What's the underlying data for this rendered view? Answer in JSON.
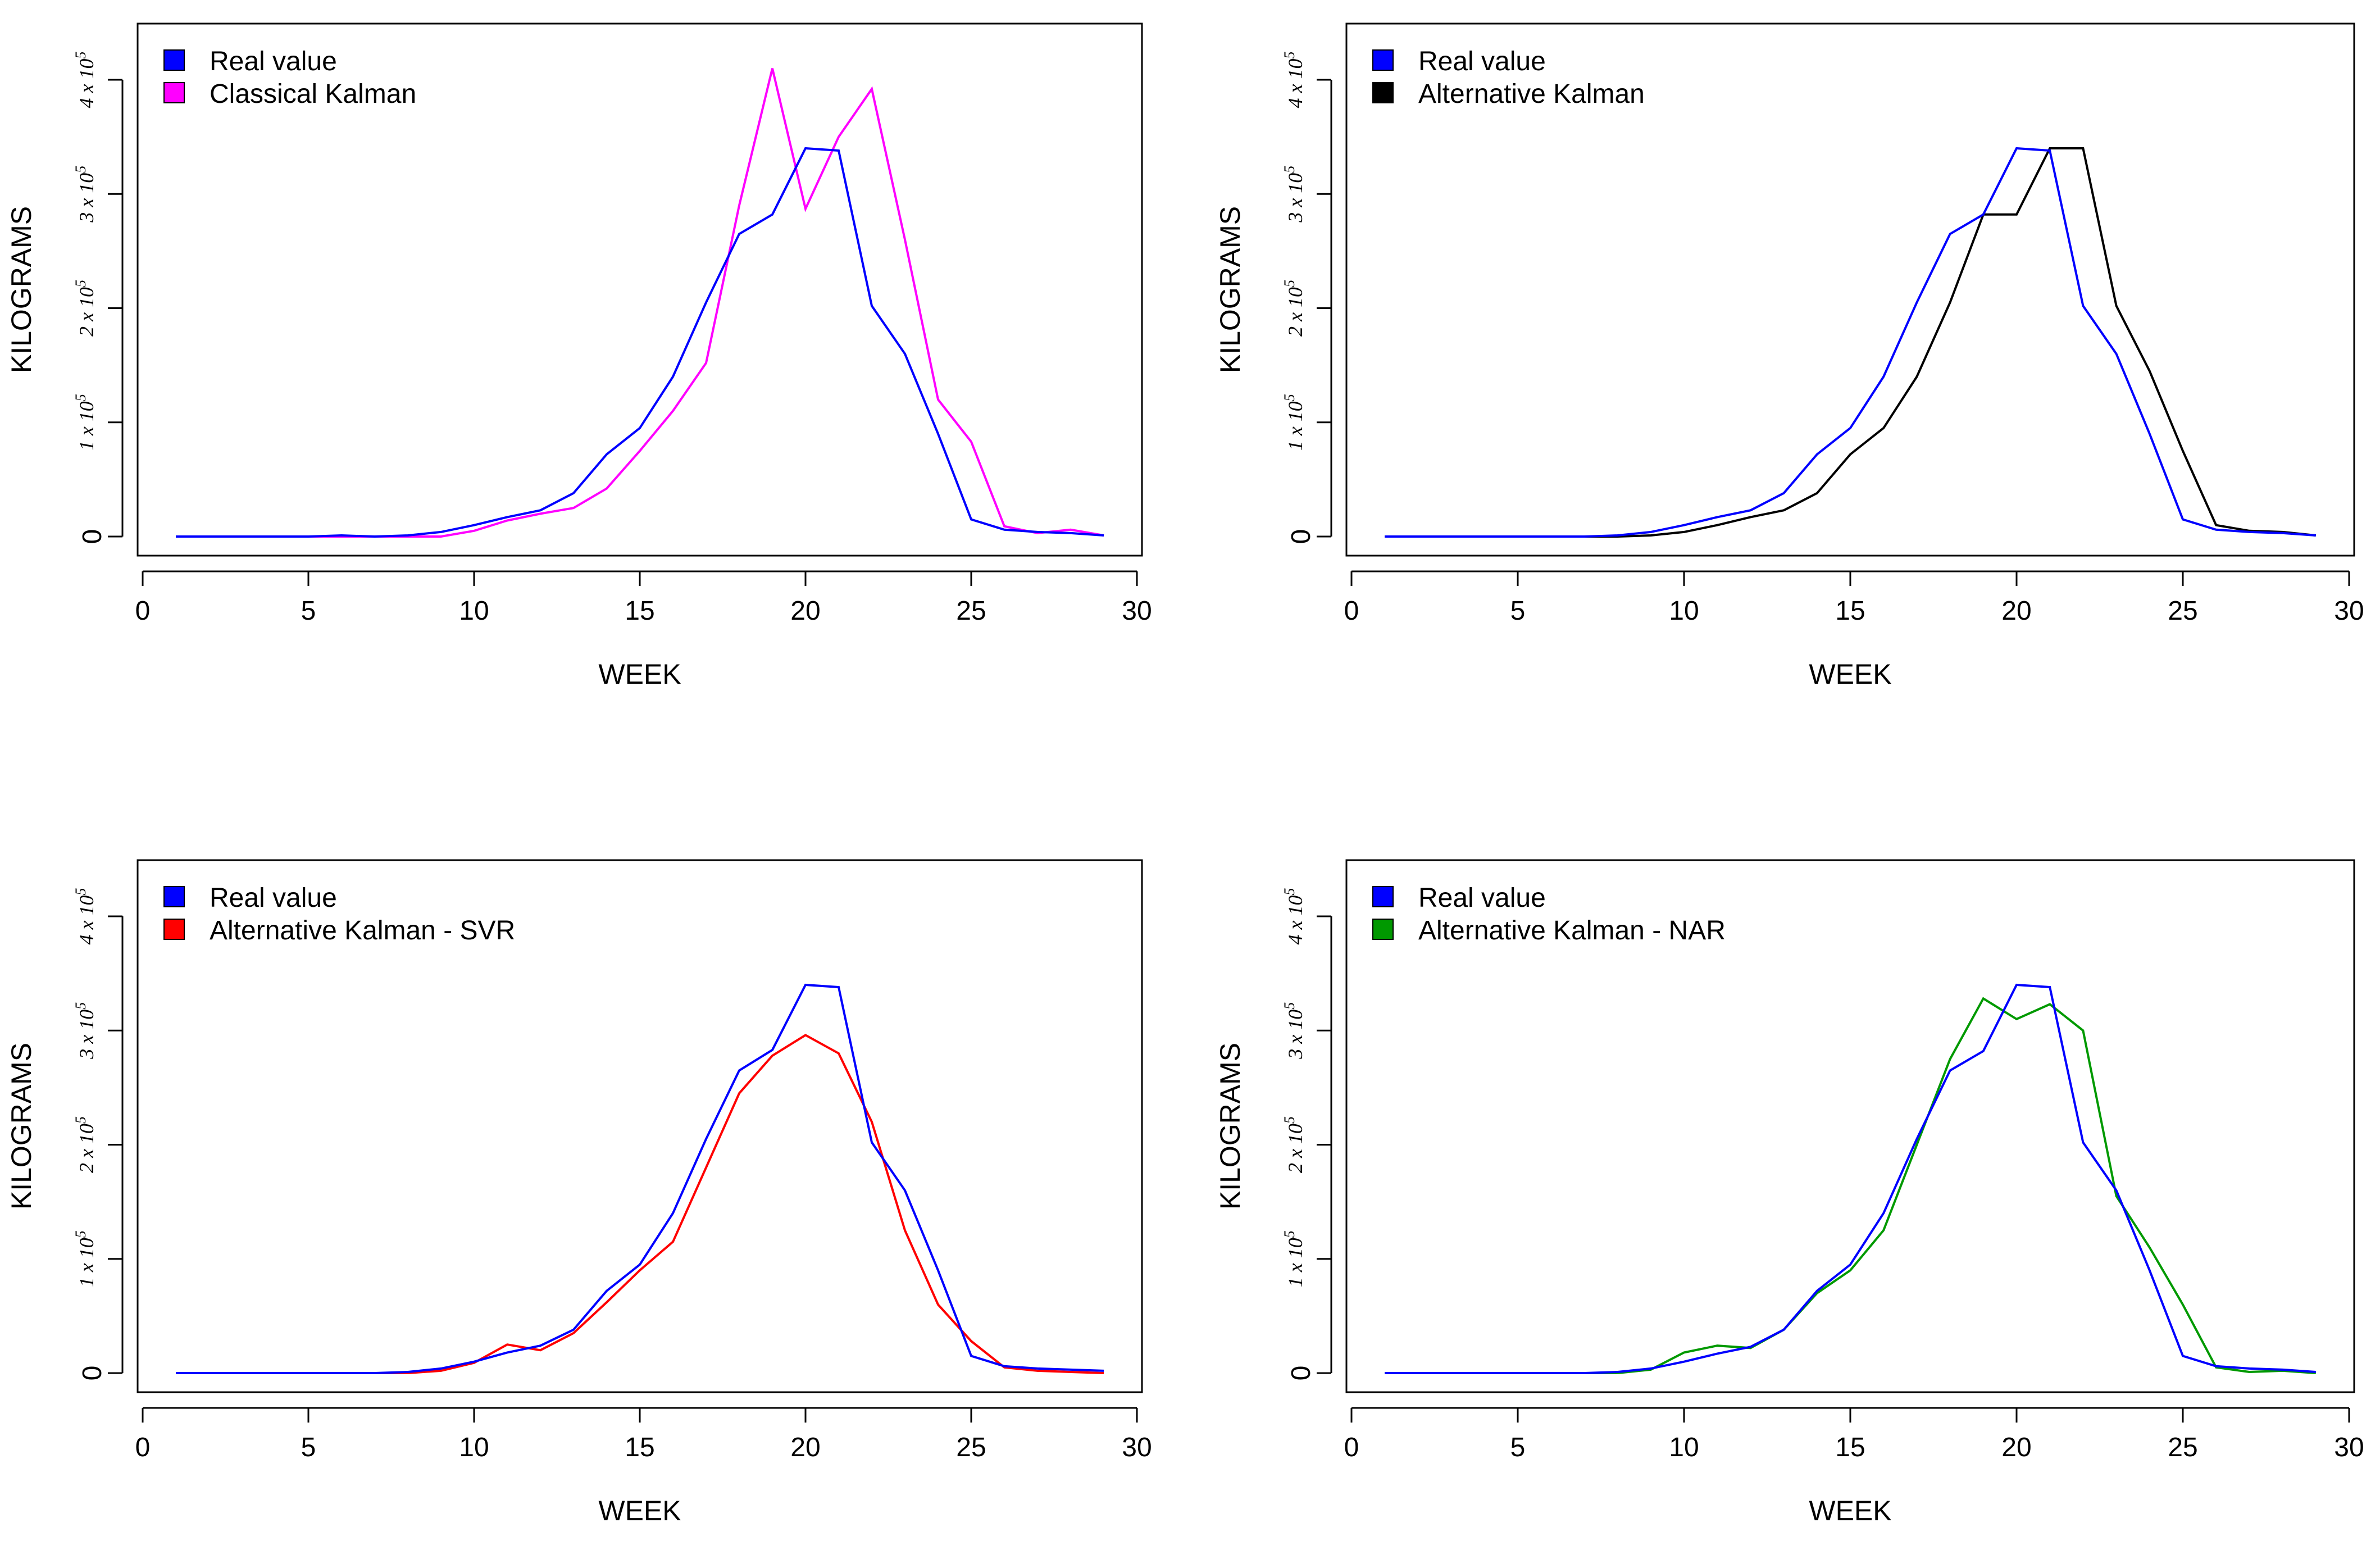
{
  "chart_data": [
    {
      "type": "line",
      "title": "",
      "xlabel": "WEEK",
      "ylabel": "KILOGRAMS",
      "xlim": [
        0,
        30
      ],
      "ylim": [
        0,
        400000
      ],
      "xticks": [
        0,
        5,
        10,
        15,
        20,
        25,
        30
      ],
      "yticks": [
        {
          "value": 0,
          "text": "0",
          "sup": ""
        },
        {
          "value": 100000,
          "text": "1 x 10",
          "sup": "5"
        },
        {
          "value": 200000,
          "text": "2 x 10",
          "sup": "5"
        },
        {
          "value": 300000,
          "text": "3 x 10",
          "sup": "5"
        },
        {
          "value": 400000,
          "text": "4 x 10",
          "sup": "5"
        }
      ],
      "grid": false,
      "legend_position": "top-left",
      "x": [
        1,
        2,
        3,
        4,
        5,
        6,
        7,
        8,
        9,
        10,
        11,
        12,
        13,
        14,
        15,
        16,
        17,
        18,
        19,
        20,
        21,
        22,
        23,
        24,
        25,
        26,
        27,
        28,
        29
      ],
      "series": [
        {
          "name": "Classical Kalman",
          "color": "#ff00ff",
          "values": [
            0,
            0,
            0,
            0,
            0,
            0,
            0,
            0,
            0,
            5000,
            14000,
            20000,
            25000,
            42000,
            75000,
            110000,
            152000,
            290000,
            410000,
            287000,
            350000,
            392000,
            260000,
            120000,
            83000,
            9000,
            3000,
            6000,
            1000
          ]
        },
        {
          "name": "Real value",
          "color": "#0000ff",
          "values": [
            0,
            0,
            0,
            0,
            0,
            1000,
            0,
            1000,
            4000,
            10000,
            17000,
            23000,
            38000,
            72000,
            95000,
            140000,
            205000,
            265000,
            282000,
            340000,
            338000,
            202000,
            160000,
            90000,
            15000,
            6000,
            4000,
            3000,
            1000
          ]
        }
      ],
      "legend": [
        {
          "label": "Real value",
          "color": "#0000ff"
        },
        {
          "label": "Classical Kalman",
          "color": "#ff00ff"
        }
      ]
    },
    {
      "type": "line",
      "title": "",
      "xlabel": "WEEK",
      "ylabel": "KILOGRAMS",
      "xlim": [
        0,
        30
      ],
      "ylim": [
        0,
        400000
      ],
      "xticks": [
        0,
        5,
        10,
        15,
        20,
        25,
        30
      ],
      "yticks": [
        {
          "value": 0,
          "text": "0",
          "sup": ""
        },
        {
          "value": 100000,
          "text": "1 x 10",
          "sup": "5"
        },
        {
          "value": 200000,
          "text": "2 x 10",
          "sup": "5"
        },
        {
          "value": 300000,
          "text": "3 x 10",
          "sup": "5"
        },
        {
          "value": 400000,
          "text": "4 x 10",
          "sup": "5"
        }
      ],
      "grid": false,
      "legend_position": "top-left",
      "x": [
        1,
        2,
        3,
        4,
        5,
        6,
        7,
        8,
        9,
        10,
        11,
        12,
        13,
        14,
        15,
        16,
        17,
        18,
        19,
        20,
        21,
        22,
        23,
        24,
        25,
        26,
        27,
        28,
        29
      ],
      "series": [
        {
          "name": "Alternative Kalman",
          "color": "#000000",
          "values": [
            0,
            0,
            0,
            0,
            0,
            0,
            0,
            0,
            1000,
            4000,
            10000,
            17000,
            23000,
            38000,
            72000,
            95000,
            140000,
            205000,
            282000,
            282000,
            340000,
            340000,
            202000,
            145000,
            75000,
            10000,
            5000,
            4000,
            1000
          ]
        },
        {
          "name": "Real value",
          "color": "#0000ff",
          "values": [
            0,
            0,
            0,
            0,
            0,
            0,
            0,
            1000,
            4000,
            10000,
            17000,
            23000,
            38000,
            72000,
            95000,
            140000,
            205000,
            265000,
            282000,
            340000,
            338000,
            202000,
            160000,
            90000,
            15000,
            6000,
            4000,
            3000,
            1000
          ]
        }
      ],
      "legend": [
        {
          "label": "Real value",
          "color": "#0000ff"
        },
        {
          "label": "Alternative Kalman",
          "color": "#000000"
        }
      ]
    },
    {
      "type": "line",
      "title": "",
      "xlabel": "WEEK",
      "ylabel": "KILOGRAMS",
      "xlim": [
        0,
        30
      ],
      "ylim": [
        0,
        400000
      ],
      "xticks": [
        0,
        5,
        10,
        15,
        20,
        25,
        30
      ],
      "yticks": [
        {
          "value": 0,
          "text": "0",
          "sup": ""
        },
        {
          "value": 100000,
          "text": "1 x 10",
          "sup": "5"
        },
        {
          "value": 200000,
          "text": "2 x 10",
          "sup": "5"
        },
        {
          "value": 300000,
          "text": "3 x 10",
          "sup": "5"
        },
        {
          "value": 400000,
          "text": "4 x 10",
          "sup": "5"
        }
      ],
      "grid": false,
      "legend_position": "top-left",
      "x": [
        1,
        2,
        3,
        4,
        5,
        6,
        7,
        8,
        9,
        10,
        11,
        12,
        13,
        14,
        15,
        16,
        17,
        18,
        19,
        20,
        21,
        22,
        23,
        24,
        25,
        26,
        27,
        28,
        29
      ],
      "series": [
        {
          "name": "Alternative Kalman - SVR",
          "color": "#ff0000",
          "values": [
            0,
            0,
            0,
            0,
            0,
            0,
            0,
            0,
            2000,
            9000,
            25000,
            20000,
            35000,
            62000,
            90000,
            115000,
            180000,
            245000,
            278000,
            296000,
            280000,
            220000,
            125000,
            60000,
            28000,
            5000,
            2000,
            1000,
            0
          ]
        },
        {
          "name": "Real value",
          "color": "#0000ff",
          "values": [
            0,
            0,
            0,
            0,
            0,
            0,
            0,
            1000,
            4000,
            10000,
            18000,
            24000,
            38000,
            72000,
            95000,
            140000,
            205000,
            265000,
            283000,
            340000,
            338000,
            202000,
            160000,
            90000,
            15000,
            6000,
            4000,
            3000,
            2000
          ]
        }
      ],
      "legend": [
        {
          "label": "Real value",
          "color": "#0000ff"
        },
        {
          "label": "Alternative Kalman - SVR",
          "color": "#ff0000"
        }
      ]
    },
    {
      "type": "line",
      "title": "",
      "xlabel": "WEEK",
      "ylabel": "KILOGRAMS",
      "xlim": [
        0,
        30
      ],
      "ylim": [
        0,
        400000
      ],
      "xticks": [
        0,
        5,
        10,
        15,
        20,
        25,
        30
      ],
      "yticks": [
        {
          "value": 0,
          "text": "0",
          "sup": ""
        },
        {
          "value": 100000,
          "text": "1 x 10",
          "sup": "5"
        },
        {
          "value": 200000,
          "text": "2 x 10",
          "sup": "5"
        },
        {
          "value": 300000,
          "text": "3 x 10",
          "sup": "5"
        },
        {
          "value": 400000,
          "text": "4 x 10",
          "sup": "5"
        }
      ],
      "grid": false,
      "legend_position": "top-left",
      "x": [
        1,
        2,
        3,
        4,
        5,
        6,
        7,
        8,
        9,
        10,
        11,
        12,
        13,
        14,
        15,
        16,
        17,
        18,
        19,
        20,
        21,
        22,
        23,
        24,
        25,
        26,
        27,
        28,
        29
      ],
      "series": [
        {
          "name": "Alternative Kalman - NAR",
          "color": "#009900",
          "values": [
            0,
            0,
            0,
            0,
            0,
            0,
            0,
            0,
            3000,
            18000,
            24000,
            22000,
            38000,
            70000,
            90000,
            125000,
            200000,
            275000,
            328000,
            310000,
            323000,
            300000,
            155000,
            110000,
            60000,
            5000,
            1000,
            2000,
            0
          ]
        },
        {
          "name": "Real value",
          "color": "#0000ff",
          "values": [
            0,
            0,
            0,
            0,
            0,
            0,
            0,
            1000,
            4000,
            10000,
            17000,
            23000,
            38000,
            72000,
            95000,
            140000,
            205000,
            265000,
            282000,
            340000,
            338000,
            202000,
            160000,
            90000,
            15000,
            6000,
            4000,
            3000,
            1000
          ]
        }
      ],
      "legend": [
        {
          "label": "Real value",
          "color": "#0000ff"
        },
        {
          "label": "Alternative Kalman - NAR",
          "color": "#009900"
        }
      ]
    }
  ]
}
